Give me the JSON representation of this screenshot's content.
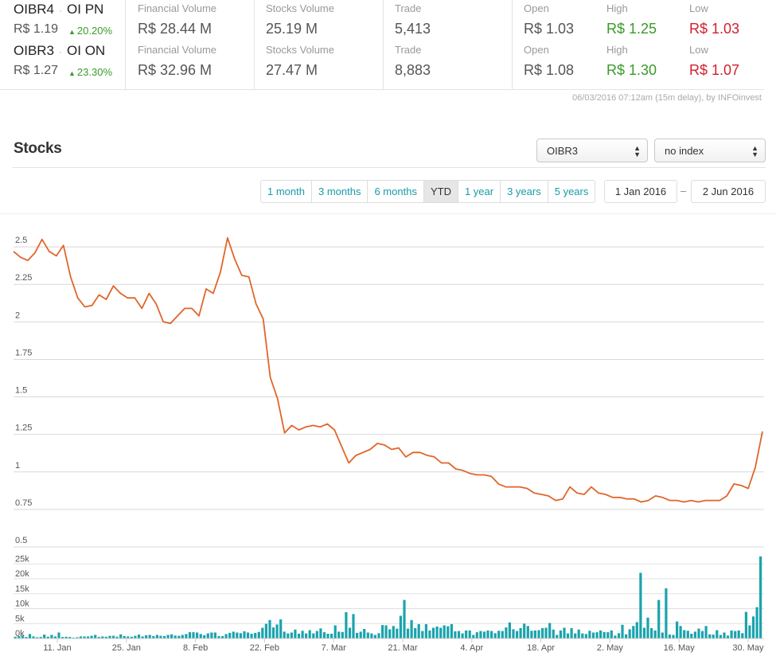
{
  "quotes": [
    {
      "ticker": "OIBR4",
      "name": "OI PN",
      "price": "R$ 1.19",
      "change": "20.20%",
      "financial_volume_label": "Financial Volume",
      "financial_volume": "R$ 28.44 M",
      "stocks_volume_label": "Stocks Volume",
      "stocks_volume": "25.19 M",
      "trade_label": "Trade",
      "trade": "5,413",
      "open_label": "Open",
      "open": "R$ 1.03",
      "high_label": "High",
      "high": "R$ 1.25",
      "low_label": "Low",
      "low": "R$ 1.03"
    },
    {
      "ticker": "OIBR3",
      "name": "OI ON",
      "price": "R$ 1.27",
      "change": "23.30%",
      "financial_volume_label": "Financial Volume",
      "financial_volume": "R$ 32.96 M",
      "stocks_volume_label": "Stocks Volume",
      "stocks_volume": "27.47 M",
      "trade_label": "Trade",
      "trade": "8,883",
      "open_label": "Open",
      "open": "R$ 1.08",
      "high_label": "High",
      "high": "R$ 1.30",
      "low_label": "Low",
      "low": "R$ 1.07"
    }
  ],
  "delay_note": "06/03/2016 07:12am (15m delay), by INFOinvest",
  "section_title": "Stocks",
  "stock_select": "OIBR3",
  "index_select": "no index",
  "ranges": [
    "1 month",
    "3 months",
    "6 months",
    "YTD",
    "1 year",
    "3 years",
    "5 years"
  ],
  "active_range": "YTD",
  "date_from": "1 Jan 2016",
  "date_to": "2 Jun 2016",
  "date_separator": "–",
  "colors": {
    "line": "#e0662a",
    "bar": "#1aa3ad",
    "up": "#3a9a2a",
    "down": "#d0202e",
    "link": "#1a9aa8"
  },
  "chart_data": {
    "type": "line",
    "ylim": [
      0.5,
      2.75
    ],
    "yticks": [
      "2.5",
      "2.25",
      "2",
      "1.75",
      "1.5",
      "1.25",
      "1",
      "0.75",
      "0.5"
    ],
    "xticks": [
      "11. Jan",
      "25. Jan",
      "8. Feb",
      "22. Feb",
      "7. Mar",
      "21. Mar",
      "4. Apr",
      "18. Apr",
      "2. May",
      "16. May",
      "30. May"
    ],
    "price": [
      2.47,
      2.43,
      2.41,
      2.46,
      2.55,
      2.47,
      2.44,
      2.51,
      2.3,
      2.16,
      2.1,
      2.11,
      2.18,
      2.15,
      2.24,
      2.19,
      2.16,
      2.16,
      2.09,
      2.19,
      2.12,
      2.0,
      1.99,
      2.04,
      2.09,
      2.09,
      2.04,
      2.22,
      2.19,
      2.33,
      2.56,
      2.42,
      2.31,
      2.3,
      2.12,
      2.02,
      1.63,
      1.49,
      1.26,
      1.31,
      1.28,
      1.3,
      1.31,
      1.3,
      1.32,
      1.28,
      1.17,
      1.06,
      1.11,
      1.13,
      1.15,
      1.19,
      1.18,
      1.15,
      1.16,
      1.1,
      1.13,
      1.13,
      1.11,
      1.1,
      1.06,
      1.06,
      1.02,
      1.01,
      0.99,
      0.98,
      0.98,
      0.97,
      0.92,
      0.9,
      0.9,
      0.9,
      0.89,
      0.86,
      0.85,
      0.84,
      0.81,
      0.82,
      0.9,
      0.86,
      0.85,
      0.9,
      0.86,
      0.85,
      0.83,
      0.83,
      0.82,
      0.82,
      0.8,
      0.81,
      0.84,
      0.83,
      0.81,
      0.81,
      0.8,
      0.81,
      0.8,
      0.81,
      0.81,
      0.81,
      0.84,
      0.92,
      0.91,
      0.89,
      1.03,
      1.27
    ],
    "volume_ylim": [
      0,
      28000
    ],
    "volume_yticks": [
      "25k",
      "20k",
      "15k",
      "10k",
      "5k",
      "0k"
    ],
    "volume": [
      600,
      800,
      1000,
      500,
      1500,
      700,
      400,
      500,
      1300,
      600,
      1200,
      700,
      2000,
      500,
      600,
      500,
      300,
      400,
      700,
      700,
      700,
      900,
      1200,
      500,
      700,
      600,
      900,
      900,
      600,
      1400,
      800,
      700,
      600,
      900,
      1300,
      700,
      1100,
      1200,
      800,
      1200,
      900,
      800,
      1200,
      1400,
      1000,
      900,
      1200,
      1500,
      2100,
      2100,
      2000,
      1500,
      1100,
      1700,
      2000,
      2000,
      800,
      800,
      1500,
      1900,
      2300,
      2000,
      1800,
      2400,
      2000,
      1600,
      1900,
      2200,
      3600,
      4900,
      6200,
      3700,
      4700,
      6400,
      2300,
      1700,
      2000,
      3000,
      1600,
      2600,
      1700,
      2800,
      1700,
      2500,
      3400,
      2100,
      1600,
      1600,
      4400,
      2300,
      2200,
      8800,
      3600,
      8200,
      1900,
      2300,
      3200,
      2000,
      1700,
      1200,
      1800,
      4500,
      4400,
      3100,
      4200,
      3300,
      7600,
      12900,
      3300,
      6200,
      3500,
      4800,
      2500,
      4800,
      2700,
      3600,
      4000,
      3600,
      4400,
      4100,
      4800,
      2400,
      2500,
      1700,
      2700,
      2700,
      1200,
      2100,
      2500,
      2300,
      2700,
      2500,
      1800,
      2600,
      2500,
      3700,
      5400,
      3100,
      2500,
      3500,
      5000,
      4200,
      2600,
      2700,
      2800,
      3500,
      3600,
      5200,
      3000,
      1200,
      2700,
      3600,
      1700,
      3500,
      1700,
      3000,
      1700,
      1500,
      2600,
      2000,
      2100,
      2700,
      2200,
      2100,
      2700,
      1000,
      1800,
      4600,
      1400,
      3100,
      4200,
      5500,
      22000,
      3600,
      7000,
      3500,
      2700,
      12900,
      2000,
      16800,
      1300,
      1200,
      5700,
      4200,
      2800,
      2600,
      1600,
      2300,
      3300,
      2500,
      4200,
      1400,
      1300,
      2800,
      1200,
      2000,
      1000,
      2700,
      2500,
      2700,
      1800,
      8900,
      4400,
      7400,
      10500,
      27500
    ]
  }
}
